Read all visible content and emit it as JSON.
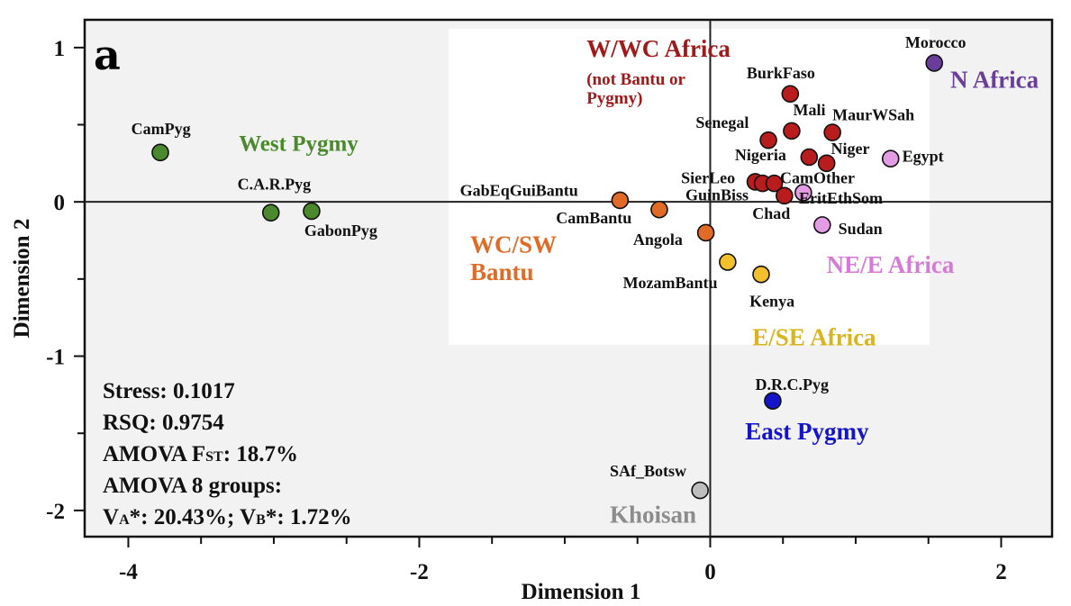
{
  "chart_data": {
    "type": "scatter",
    "panel_label": "a",
    "xlabel": "Dimension 1",
    "ylabel": "Dimension 2",
    "xlim": [
      -4.3,
      2.35
    ],
    "ylim": [
      -2.17,
      1.18
    ],
    "xticks": [
      -4,
      -2,
      0,
      2
    ],
    "xtick_labels": [
      "-4",
      "-2",
      "0",
      "2"
    ],
    "yticks": [
      1,
      0,
      -1,
      -2
    ],
    "ytick_labels": [
      "1",
      "0",
      "-1",
      "-2"
    ],
    "grid": false,
    "points": [
      {
        "label": "CamPyg",
        "x": -3.78,
        "y": 0.32,
        "color": "#4a8a2c",
        "lx": -3.98,
        "ly": 0.44
      },
      {
        "label": "C.A.R.Pyg",
        "x": -3.02,
        "y": -0.07,
        "color": "#4a8a2c",
        "lx": -3.25,
        "ly": 0.08
      },
      {
        "label": "GabonPyg",
        "x": -2.74,
        "y": -0.06,
        "color": "#4a8a2c",
        "lx": -2.79,
        "ly": -0.22
      },
      {
        "label": "GabEqGuiBantu",
        "x": -0.62,
        "y": 0.01,
        "color": "#e06a26",
        "lx": -1.72,
        "ly": 0.04
      },
      {
        "label": "CamBantu",
        "x": -0.35,
        "y": -0.05,
        "color": "#e06a26",
        "lx": -1.06,
        "ly": -0.14
      },
      {
        "label": "Angola",
        "x": -0.03,
        "y": -0.2,
        "color": "#e06a26",
        "lx": -0.53,
        "ly": -0.28
      },
      {
        "label": "MozamBantu",
        "x": 0.12,
        "y": -0.39,
        "color": "#f2c02b",
        "lx": -0.6,
        "ly": -0.56
      },
      {
        "label": "Kenya",
        "x": 0.35,
        "y": -0.47,
        "color": "#f2c02b",
        "lx": 0.27,
        "ly": -0.68
      },
      {
        "label": "BurkFaso",
        "x": 0.55,
        "y": 0.7,
        "color": "#b81c1c",
        "lx": 0.25,
        "ly": 0.8
      },
      {
        "label": "Mali",
        "x": 0.56,
        "y": 0.46,
        "color": "#b81c1c",
        "lx": 0.57,
        "ly": 0.56
      },
      {
        "label": "MaurWSah",
        "x": 0.84,
        "y": 0.45,
        "color": "#b81c1c",
        "lx": 0.84,
        "ly": 0.53
      },
      {
        "label": "Senegal",
        "x": 0.4,
        "y": 0.4,
        "color": "#b81c1c",
        "lx": -0.1,
        "ly": 0.48
      },
      {
        "label": "Nigeria",
        "x": 0.68,
        "y": 0.29,
        "color": "#b81c1c",
        "lx": 0.17,
        "ly": 0.27
      },
      {
        "label": "Niger",
        "x": 0.8,
        "y": 0.25,
        "color": "#b81c1c",
        "lx": 0.83,
        "ly": 0.31
      },
      {
        "label": "SierLeo",
        "x": 0.31,
        "y": 0.13,
        "color": "#b81c1c",
        "lx": -0.2,
        "ly": 0.12
      },
      {
        "label": "GuinBiss",
        "x": 0.36,
        "y": 0.12,
        "color": "#b81c1c",
        "lx": -0.17,
        "ly": 0.01
      },
      {
        "label": "CamOther",
        "x": 0.44,
        "y": 0.12,
        "color": "#b81c1c",
        "lx": 0.48,
        "ly": 0.12
      },
      {
        "label": "Chad",
        "x": 0.51,
        "y": 0.04,
        "color": "#b81c1c",
        "lx": 0.29,
        "ly": -0.11
      },
      {
        "label": "EritEthSom",
        "x": 0.64,
        "y": 0.06,
        "color": "#e39be3",
        "lx": 0.61,
        "ly": -0.01
      },
      {
        "label": "Egypt",
        "x": 1.24,
        "y": 0.28,
        "color": "#e39be3",
        "lx": 1.32,
        "ly": 0.26
      },
      {
        "label": "Sudan",
        "x": 0.77,
        "y": -0.15,
        "color": "#e39be3",
        "lx": 0.88,
        "ly": -0.21
      },
      {
        "label": "Morocco",
        "x": 1.54,
        "y": 0.9,
        "color": "#6a3d9a",
        "lx": 1.34,
        "ly": 1.0
      },
      {
        "label": "D.R.C.Pyg",
        "x": 0.43,
        "y": -1.29,
        "color": "#1414c8",
        "lx": 0.31,
        "ly": -1.22
      },
      {
        "label": "SAf_Botsw",
        "x": -0.07,
        "y": -1.87,
        "color": "#bebebe",
        "lx": -0.69,
        "ly": -1.78
      }
    ],
    "groups": [
      {
        "name": "West Pygmy",
        "color": "#4a8a2c",
        "lines": [
          "West Pygmy"
        ],
        "x": -3.24,
        "y": 0.33,
        "size": 25
      },
      {
        "name": "W/WC Africa",
        "color": "#a01a1a",
        "lines": [
          "W/WC Africa"
        ],
        "x": -0.85,
        "y": 0.94,
        "size": 27
      },
      {
        "name": "(not Bantu or Pygmy)",
        "color": "#a01a1a",
        "lines": [
          "(not Bantu or",
          "Pygmy)"
        ],
        "x": -0.85,
        "y": 0.76,
        "size": 19
      },
      {
        "name": "WC/SW Bantu",
        "color": "#e06a26",
        "lines": [
          "WC/SW",
          "Bantu"
        ],
        "x": -1.65,
        "y": -0.33,
        "size": 27
      },
      {
        "name": "N Africa",
        "color": "#6a3d9a",
        "lines": [
          "N Africa"
        ],
        "x": 1.65,
        "y": 0.74,
        "size": 27
      },
      {
        "name": "NE/E Africa",
        "color": "#d77ad7",
        "lines": [
          "NE/E Africa"
        ],
        "x": 0.8,
        "y": -0.46,
        "size": 27
      },
      {
        "name": "E/SE Africa",
        "color": "#d9b320",
        "lines": [
          "E/SE Africa"
        ],
        "x": 0.29,
        "y": -0.93,
        "size": 27
      },
      {
        "name": "East Pygmy",
        "color": "#1414c8",
        "lines": [
          "East Pygmy"
        ],
        "x": 0.24,
        "y": -1.54,
        "size": 27
      },
      {
        "name": "Khoisan",
        "color": "#8c8c8c",
        "lines": [
          "Khoisan"
        ],
        "x": -0.69,
        "y": -2.08,
        "size": 27
      }
    ],
    "stats": [
      {
        "text": "Stress: 0.1017"
      },
      {
        "text": "RSQ: 0.9754"
      },
      {
        "text": "AMOVA F",
        "sub": "ST",
        "tail": ": 18.7%"
      },
      {
        "text": "AMOVA 8 groups:"
      },
      {
        "parts": [
          [
            "V",
            ""
          ],
          [
            "A",
            "sub"
          ],
          [
            "*: 20.43%; V",
            ""
          ],
          [
            "B",
            "sub"
          ],
          [
            "*: 1.72%",
            ""
          ]
        ]
      }
    ]
  }
}
